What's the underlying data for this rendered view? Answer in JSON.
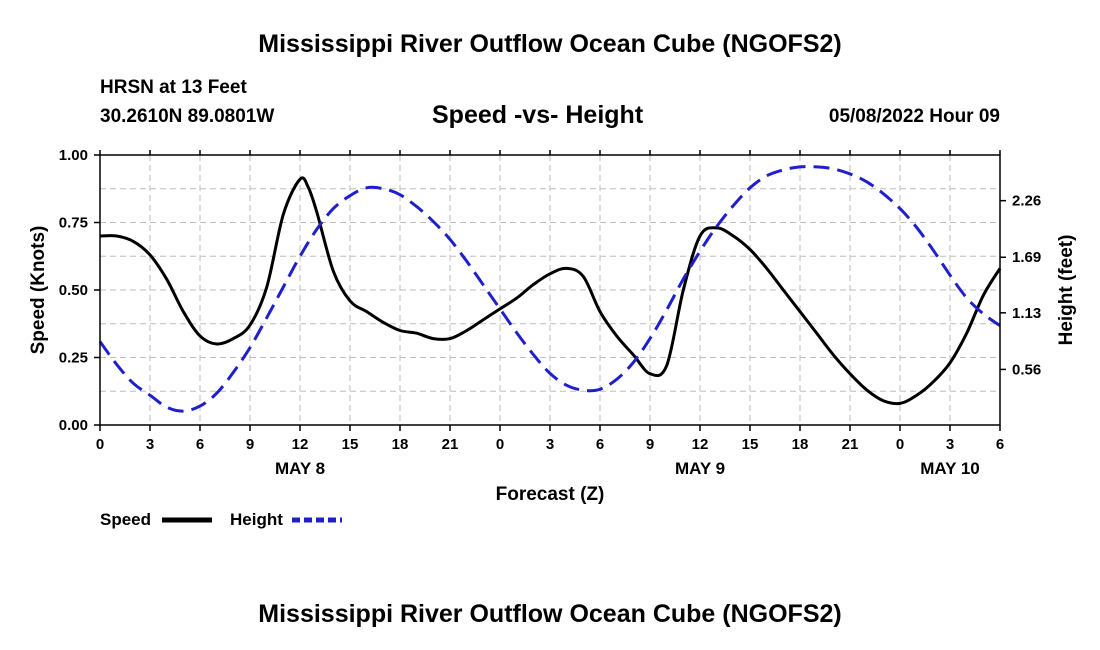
{
  "page": {
    "title": "Mississippi River Outflow Ocean Cube (NGOFS2)",
    "station": "HRSN at 13 Feet",
    "coords": "30.2610N  89.0801W",
    "datetime": "05/08/2022 Hour 09",
    "footer_title": "Mississippi River Outflow Ocean Cube (NGOFS2)"
  },
  "colors": {
    "speed": "#000000",
    "height": "#1f1fcc",
    "grid": "#bdbdbd"
  },
  "chart_data": {
    "type": "line",
    "title": "Speed -vs- Height",
    "xlabel": "Forecast (Z)",
    "ylabel": "Speed (Knots)",
    "y2label": "Height (feet)",
    "xlim": [
      0,
      54
    ],
    "ylim": [
      0,
      1.0
    ],
    "y2lim": [
      0.0,
      2.72
    ],
    "x_ticks": [
      0,
      3,
      6,
      9,
      12,
      15,
      18,
      21,
      24,
      27,
      30,
      33,
      36,
      39,
      42,
      45,
      48,
      51,
      54
    ],
    "x_tick_labels": [
      "0",
      "3",
      "6",
      "9",
      "12",
      "15",
      "18",
      "21",
      "0",
      "3",
      "6",
      "9",
      "12",
      "15",
      "18",
      "21",
      "0",
      "3",
      "6"
    ],
    "date_labels": [
      {
        "x": 12,
        "label": "MAY 8"
      },
      {
        "x": 36,
        "label": "MAY 9"
      },
      {
        "x": 51,
        "label": "MAY 10"
      }
    ],
    "y_ticks": [
      0,
      0.25,
      0.5,
      0.75,
      1.0
    ],
    "y_tick_labels": [
      "0.00",
      "0.25",
      "0.50",
      "0.75",
      "1.00"
    ],
    "y2_ticks": [
      0.56,
      1.13,
      1.69,
      2.26
    ],
    "y2_tick_labels": [
      "0.56",
      "1.13",
      "1.69",
      "2.26"
    ],
    "legend": [
      {
        "name": "Speed",
        "style": "solid"
      },
      {
        "name": "Height",
        "style": "dashed"
      }
    ],
    "series": [
      {
        "name": "Speed",
        "axis": "left",
        "style": "solid",
        "x": [
          0,
          1,
          2,
          3,
          4,
          5,
          6,
          7,
          8,
          9,
          10,
          11,
          12,
          12.5,
          13,
          14,
          15,
          16,
          17,
          18,
          19,
          20,
          21,
          22,
          23,
          24,
          25,
          26,
          27,
          28,
          29,
          30,
          31,
          32,
          33,
          34,
          35,
          36,
          37,
          38,
          39,
          40,
          41,
          42,
          43,
          44,
          45,
          46,
          47,
          48,
          49,
          50,
          51,
          52,
          53,
          54
        ],
        "values": [
          0.7,
          0.7,
          0.68,
          0.63,
          0.54,
          0.42,
          0.33,
          0.3,
          0.32,
          0.37,
          0.51,
          0.78,
          0.91,
          0.88,
          0.79,
          0.57,
          0.46,
          0.42,
          0.38,
          0.35,
          0.34,
          0.32,
          0.32,
          0.35,
          0.39,
          0.43,
          0.47,
          0.52,
          0.56,
          0.58,
          0.55,
          0.42,
          0.33,
          0.26,
          0.19,
          0.22,
          0.5,
          0.7,
          0.73,
          0.7,
          0.65,
          0.58,
          0.5,
          0.42,
          0.34,
          0.26,
          0.19,
          0.13,
          0.09,
          0.08,
          0.11,
          0.16,
          0.23,
          0.34,
          0.48,
          0.58
        ]
      },
      {
        "name": "Height",
        "axis": "right",
        "style": "dashed",
        "x": [
          0,
          1,
          2,
          3,
          4,
          5,
          6,
          7,
          8,
          9,
          10,
          11,
          12,
          13,
          14,
          15,
          16,
          17,
          18,
          19,
          20,
          21,
          22,
          23,
          24,
          25,
          26,
          27,
          28,
          29,
          30,
          31,
          32,
          33,
          34,
          35,
          36,
          37,
          38,
          39,
          40,
          41,
          42,
          43,
          44,
          45,
          46,
          47,
          48,
          49,
          50,
          51,
          52,
          53,
          54
        ],
        "values": [
          0.84,
          0.61,
          0.42,
          0.3,
          0.18,
          0.14,
          0.19,
          0.32,
          0.53,
          0.78,
          1.08,
          1.39,
          1.7,
          1.97,
          2.18,
          2.31,
          2.39,
          2.38,
          2.32,
          2.2,
          2.05,
          1.87,
          1.65,
          1.41,
          1.17,
          0.93,
          0.71,
          0.52,
          0.4,
          0.35,
          0.36,
          0.46,
          0.63,
          0.87,
          1.16,
          1.47,
          1.75,
          2.0,
          2.21,
          2.39,
          2.51,
          2.57,
          2.6,
          2.6,
          2.58,
          2.53,
          2.45,
          2.33,
          2.18,
          1.99,
          1.76,
          1.51,
          1.28,
          1.12,
          1.0
        ]
      }
    ]
  }
}
